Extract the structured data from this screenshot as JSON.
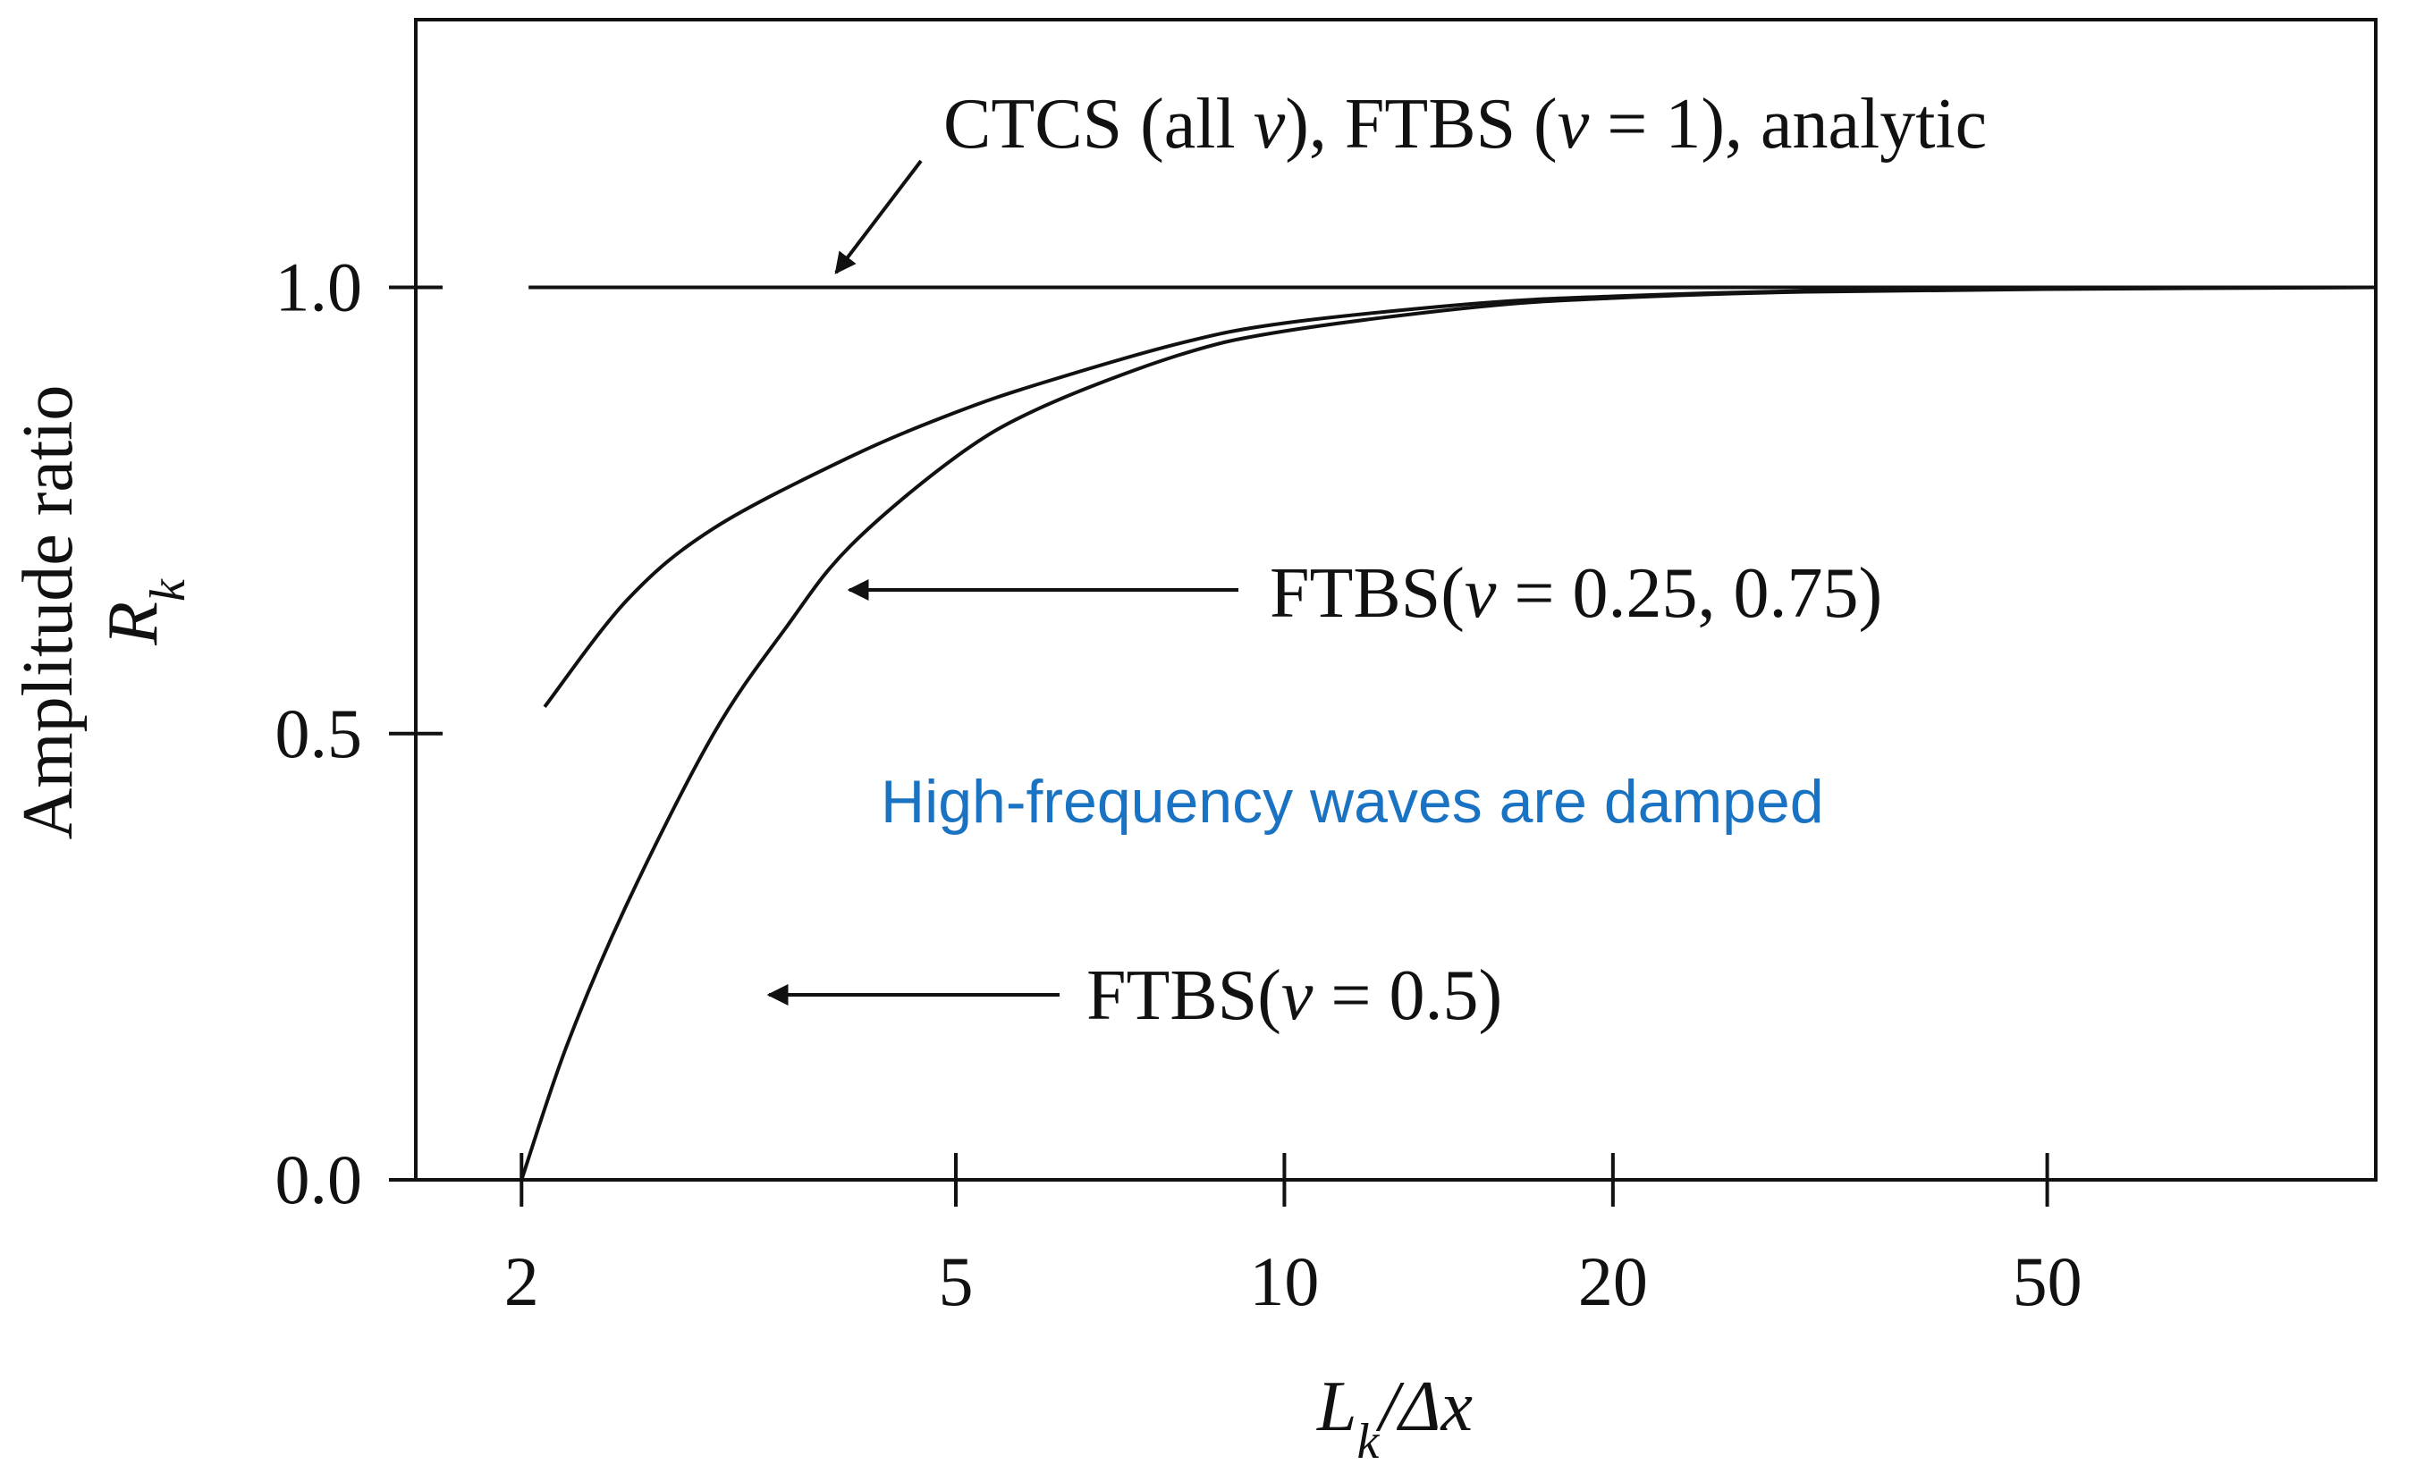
{
  "chart_data": {
    "type": "line",
    "xscale": "log",
    "xlabel": "L_k/Δx",
    "ylabel_line1": "Amplitude ratio",
    "ylabel_line2": "R_k",
    "xlim": [
      1.6,
      100
    ],
    "ylim": [
      0,
      1.3
    ],
    "x_ticks": [
      2,
      5,
      10,
      20,
      50
    ],
    "y_ticks": [
      0.0,
      0.5,
      1.0
    ],
    "y_tick_labels": [
      "0.0",
      "0.5",
      "1.0"
    ],
    "grid": false,
    "series": [
      {
        "name": "CTCS (all ν), FTBS (ν = 1), analytic",
        "x": [
          2,
          100
        ],
        "y": [
          1.0,
          1.0
        ]
      },
      {
        "name": "FTBS(ν = 0.25, 0.75)",
        "x": [
          2.1,
          2.5,
          3,
          4,
          5,
          6,
          8,
          10,
          15,
          20,
          30,
          50,
          100
        ],
        "y": [
          0.53,
          0.65,
          0.73,
          0.81,
          0.86,
          0.893,
          0.937,
          0.96,
          0.982,
          0.99,
          0.996,
          0.999,
          1.0
        ]
      },
      {
        "name": "FTBS(ν = 0.5)",
        "x": [
          2,
          2.2,
          2.5,
          3,
          3.5,
          4,
          5,
          6,
          8,
          10,
          15,
          20,
          30,
          50,
          100
        ],
        "y": [
          0.0,
          0.15,
          0.31,
          0.5,
          0.62,
          0.71,
          0.81,
          0.866,
          0.924,
          0.951,
          0.978,
          0.988,
          0.995,
          0.998,
          1.0
        ]
      }
    ],
    "annotations": [
      {
        "text_parts": [
          "CTCS (all ",
          "ν",
          "), FTBS (",
          "ν",
          " = 1), analytic"
        ],
        "points_to": [
          3,
          1.0
        ]
      },
      {
        "text_parts": [
          "FTBS(",
          "ν",
          " = 0.25, 0.75)"
        ],
        "points_to": [
          2.35,
          0.72
        ]
      },
      {
        "text_parts": [
          "FTBS(",
          "ν",
          " = 0.5)"
        ],
        "points_to": [
          2.25,
          0.2
        ]
      }
    ],
    "note": "High-frequency waves are damped"
  },
  "colors": {
    "ink": "#111111",
    "note": "#1a73c2",
    "background": "#ffffff"
  }
}
